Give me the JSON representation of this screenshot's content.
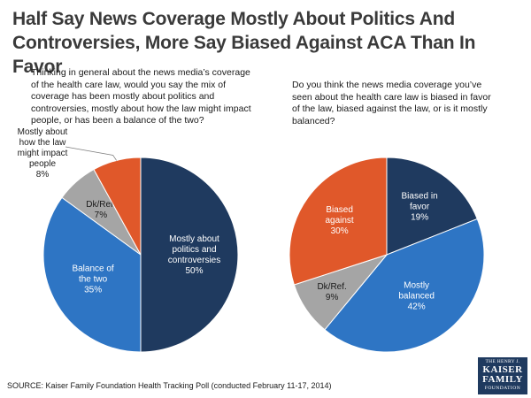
{
  "title": "Half Say News Coverage Mostly About Politics And Controversies, More Say Biased Against ACA Than In Favor",
  "source": "SOURCE: Kaiser Family Foundation Health Tracking Poll (conducted February 11-17, 2014)",
  "logo": {
    "line1": "THE HENRY J.",
    "line2a": "KAISER",
    "line2b": "FAMILY",
    "line3": "FOUNDATION"
  },
  "chart_data": [
    {
      "type": "pie",
      "question": "Thinking in general about the news media’s coverage of the health care law, would you say the mix of coverage has been mostly about politics and controversies, mostly about how the law might impact people, or has been a balance of the two?",
      "slices": [
        {
          "label_lines": [
            "Mostly about",
            "politics and",
            "controversies"
          ],
          "value": 50,
          "value_text": "50%",
          "color": "#1f3a5f",
          "text_color": "#ffffff"
        },
        {
          "label_lines": [
            "Balance of",
            "the two"
          ],
          "value": 35,
          "value_text": "35%",
          "color": "#2e75c4",
          "text_color": "#ffffff"
        },
        {
          "label_lines": [
            "Dk/Ref."
          ],
          "value": 7,
          "value_text": "7%",
          "color": "#a5a5a5",
          "text_color": "#1a1a1a"
        },
        {
          "label_lines": [
            "Mostly about",
            "how the law",
            "might impact",
            "people"
          ],
          "value": 8,
          "value_text": "8%",
          "color": "#e0582a",
          "text_color": "#1a1a1a",
          "external": true
        }
      ]
    },
    {
      "type": "pie",
      "question": "Do you think the news media coverage you’ve seen about the health care law is biased in favor of the law, biased against the law, or is it mostly balanced?",
      "slices": [
        {
          "label_lines": [
            "Biased in",
            "favor"
          ],
          "value": 19,
          "value_text": "19%",
          "color": "#1f3a5f",
          "text_color": "#ffffff"
        },
        {
          "label_lines": [
            "Mostly",
            "balanced"
          ],
          "value": 42,
          "value_text": "42%",
          "color": "#2e75c4",
          "text_color": "#ffffff"
        },
        {
          "label_lines": [
            "Dk/Ref."
          ],
          "value": 9,
          "value_text": "9%",
          "color": "#a5a5a5",
          "text_color": "#1a1a1a"
        },
        {
          "label_lines": [
            "Biased",
            "against"
          ],
          "value": 30,
          "value_text": "30%",
          "color": "#e0582a",
          "text_color": "#ffffff"
        }
      ]
    }
  ]
}
